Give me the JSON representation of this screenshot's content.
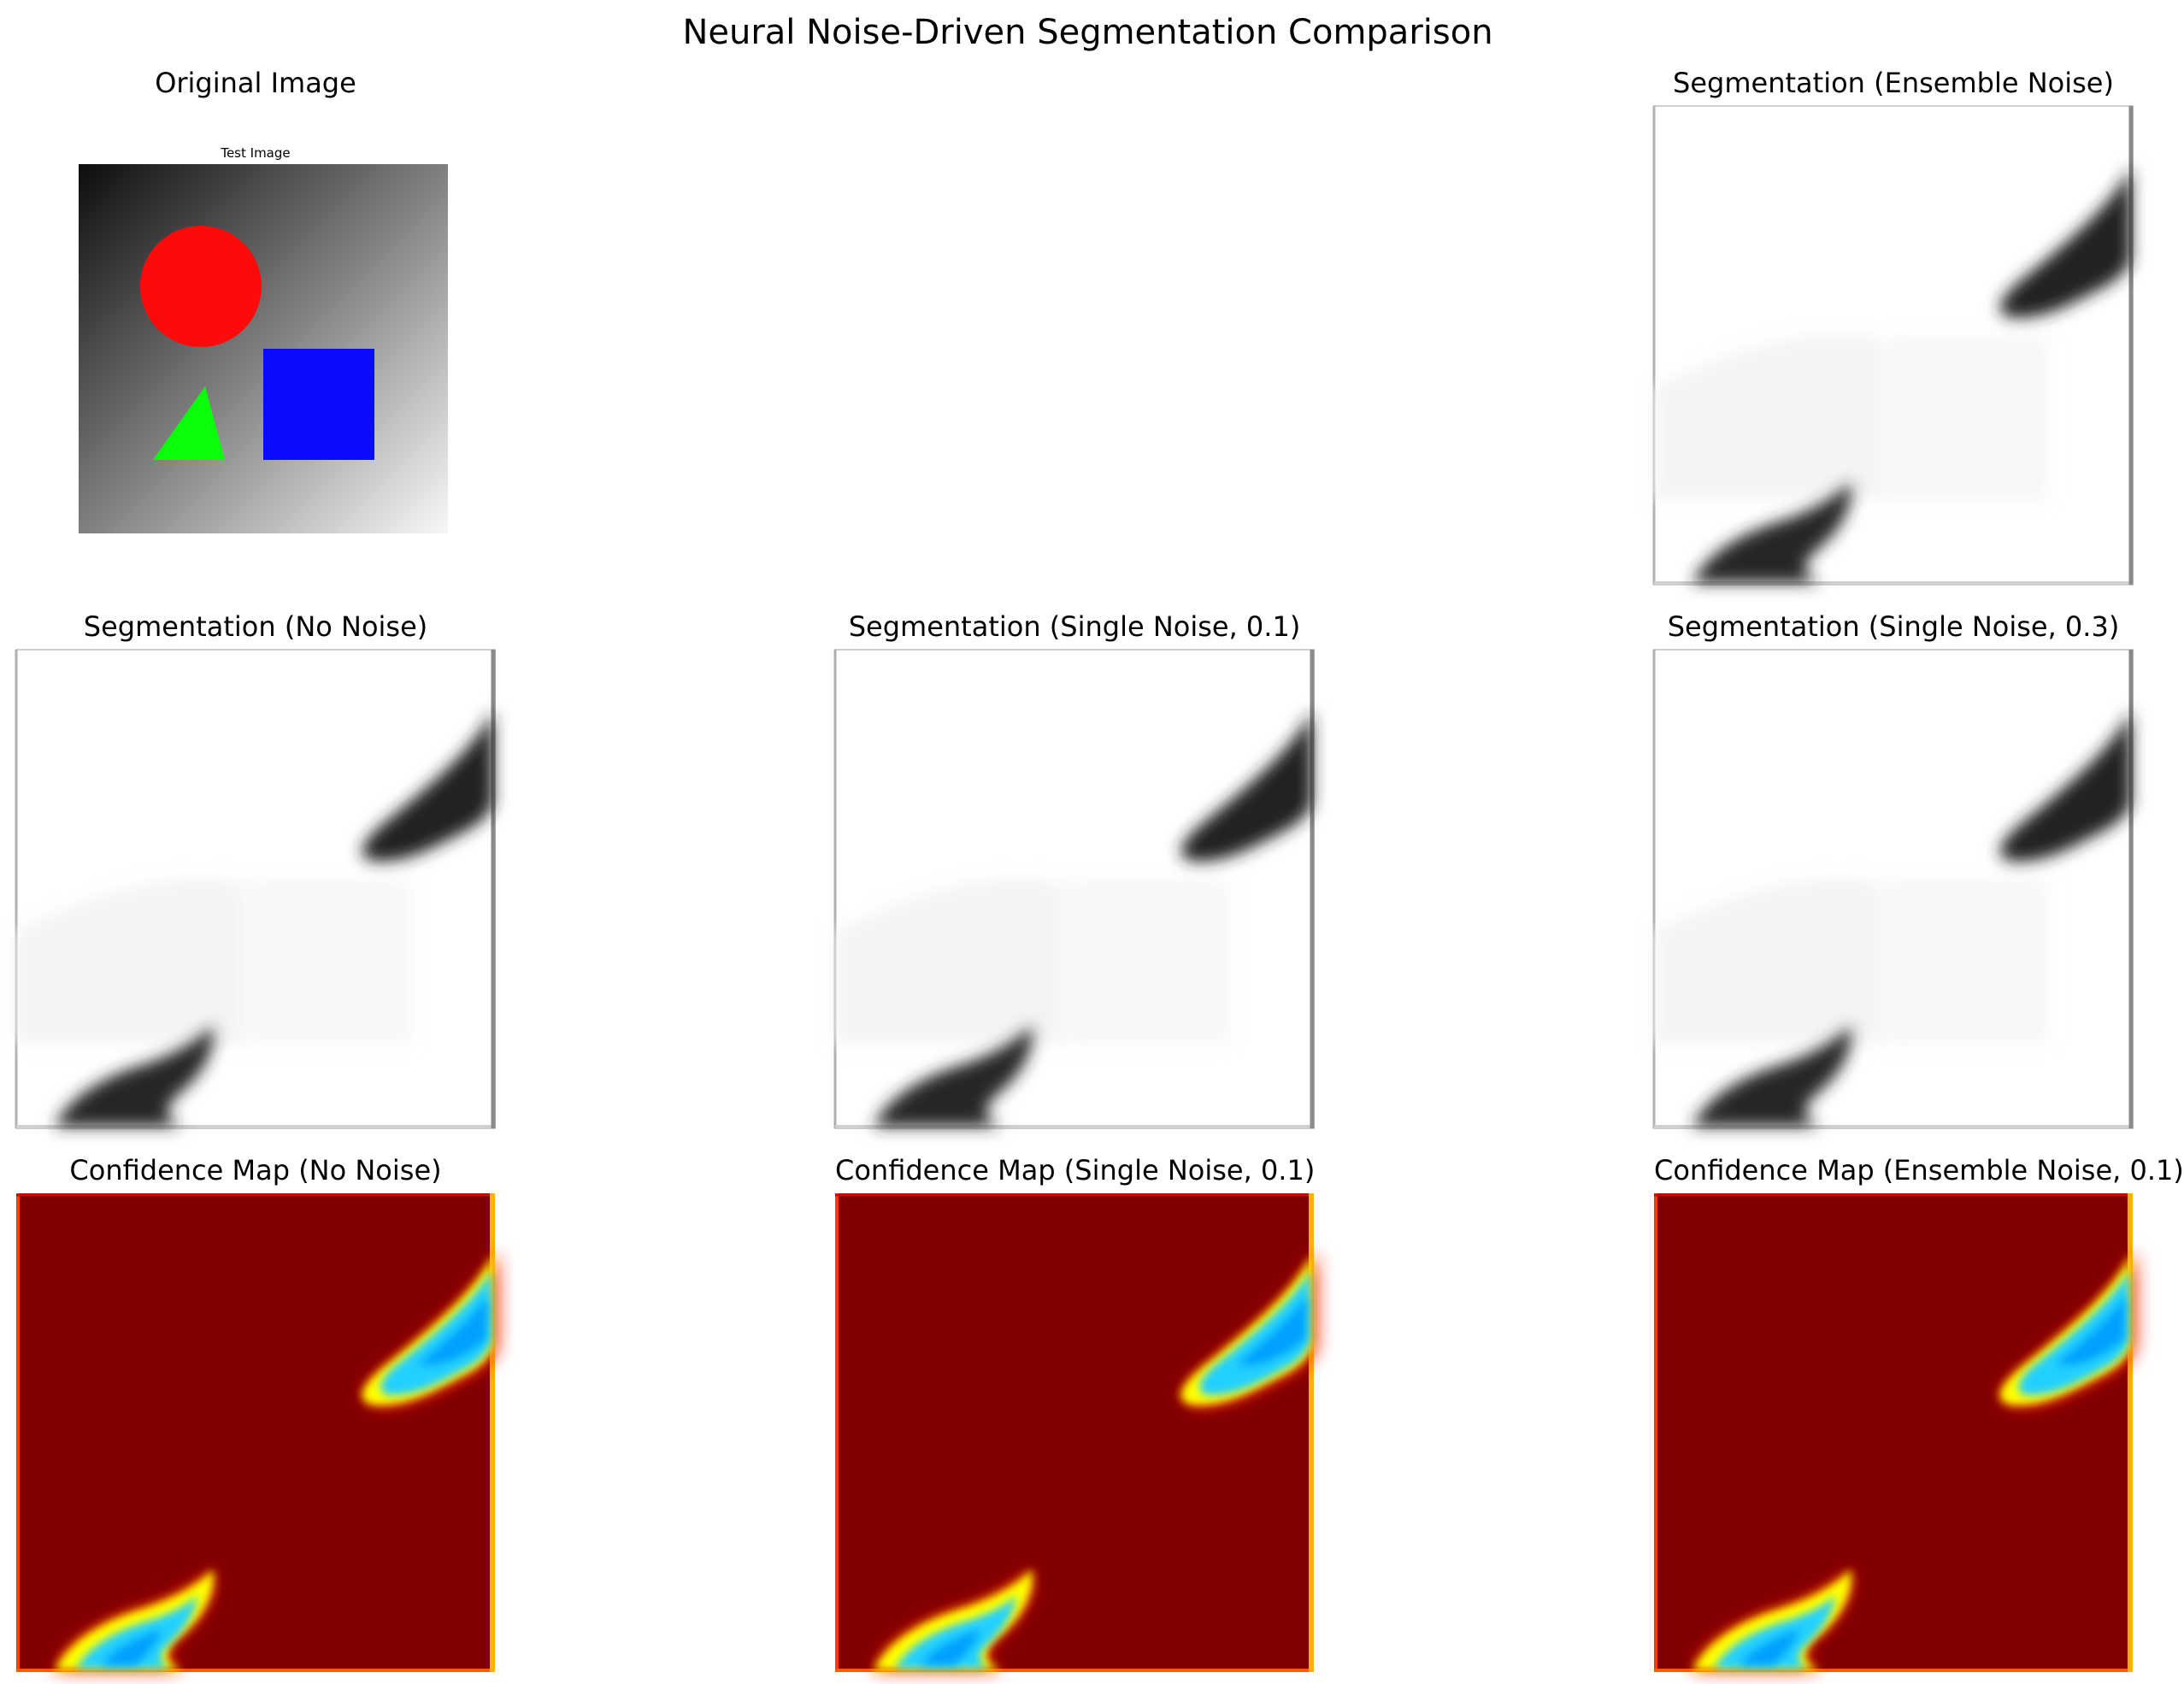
{
  "figure": {
    "title": "Neural Noise-Driven Segmentation Comparison",
    "panels": [
      {
        "id": "original",
        "title": "Original Image",
        "inner_title": "Test Image"
      },
      {
        "id": "seg-ensemble",
        "title": "Segmentation (Ensemble Noise)"
      },
      {
        "id": "seg-none",
        "title": "Segmentation (No Noise)"
      },
      {
        "id": "seg-single-01",
        "title": "Segmentation (Single Noise, 0.1)"
      },
      {
        "id": "seg-single-03",
        "title": "Segmentation (Single Noise, 0.3)"
      },
      {
        "id": "conf-none",
        "title": "Confidence Map (No Noise)"
      },
      {
        "id": "conf-single-01",
        "title": "Confidence Map (Single Noise, 0.1)"
      },
      {
        "id": "conf-ensemble-01",
        "title": "Confidence Map (Ensemble Noise, 0.1)"
      }
    ]
  },
  "colors": {
    "shape_circle": "#ff0a0a",
    "shape_square": "#0a0aff",
    "shape_triangle": "#0aff0a",
    "segmentation_dark": "#1a1a1a",
    "confidence_high": "#800000",
    "confidence_mid": "#ffff00",
    "confidence_low": "#00a0ff"
  }
}
